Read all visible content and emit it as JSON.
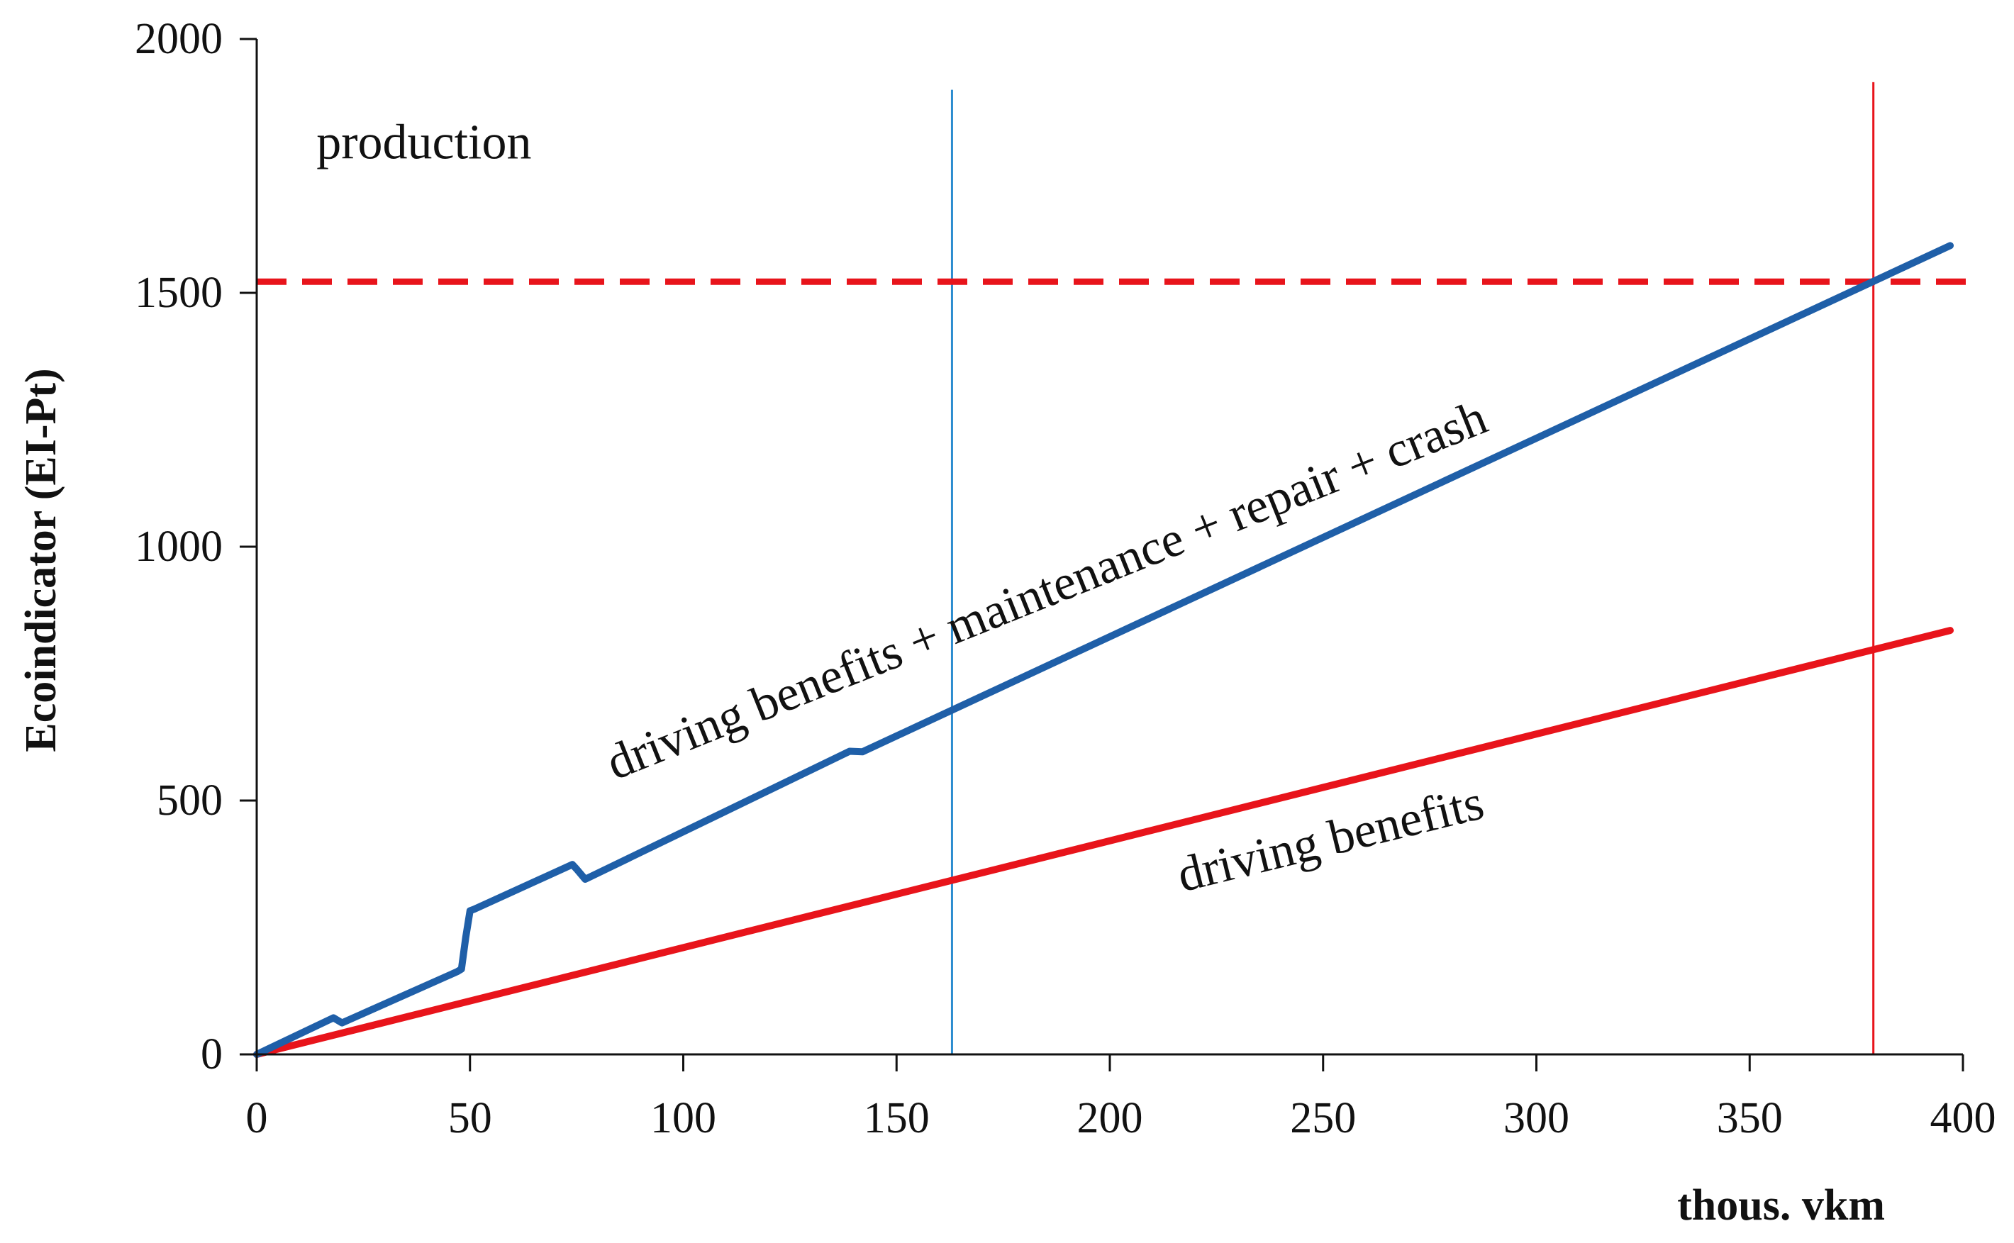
{
  "chart_data": {
    "type": "line",
    "title": "",
    "xlabel": "thous. vkm",
    "ylabel": "Ecoindicator (EI-Pt)",
    "xlim": [
      0,
      400
    ],
    "ylim": [
      0,
      2000
    ],
    "x_ticks": [
      0,
      50,
      100,
      150,
      200,
      250,
      300,
      350,
      400
    ],
    "y_ticks": [
      0,
      500,
      1000,
      1500,
      2000
    ],
    "grid": false,
    "series": [
      {
        "name": "driving benefits + maintenance + repair + crash",
        "color": "#1f5fa8",
        "style": "solid",
        "points": [
          [
            0,
            0
          ],
          [
            18,
            72
          ],
          [
            20,
            62
          ],
          [
            47,
            163
          ],
          [
            48,
            168
          ],
          [
            49,
            230
          ],
          [
            50,
            283
          ],
          [
            51,
            286
          ],
          [
            74,
            374
          ],
          [
            75,
            365
          ],
          [
            77,
            345
          ],
          [
            139,
            597
          ],
          [
            142,
            596
          ],
          [
            397,
            1593
          ]
        ]
      },
      {
        "name": "driving benefits",
        "color": "#e8141b",
        "style": "solid",
        "points": [
          [
            0,
            0
          ],
          [
            397,
            835
          ]
        ]
      },
      {
        "name": "production",
        "color": "#e8141b",
        "style": "dashed",
        "points": [
          [
            0,
            1522
          ],
          [
            402,
            1522
          ]
        ]
      }
    ],
    "vertical_lines": [
      {
        "x": 163,
        "color": "#2b8ccf",
        "y_top": 1900
      },
      {
        "x": 379,
        "color": "#e8141b",
        "y_top": 1915
      }
    ],
    "annotations": [
      {
        "text": "production",
        "x": 14,
        "y": 1765,
        "angle": 0
      },
      {
        "text": "driving benefits + maintenance + repair + crash",
        "x": 84,
        "y": 540,
        "angle": -21.8
      },
      {
        "text": "driving benefits",
        "x": 217,
        "y": 320,
        "angle": -13.8
      }
    ]
  }
}
